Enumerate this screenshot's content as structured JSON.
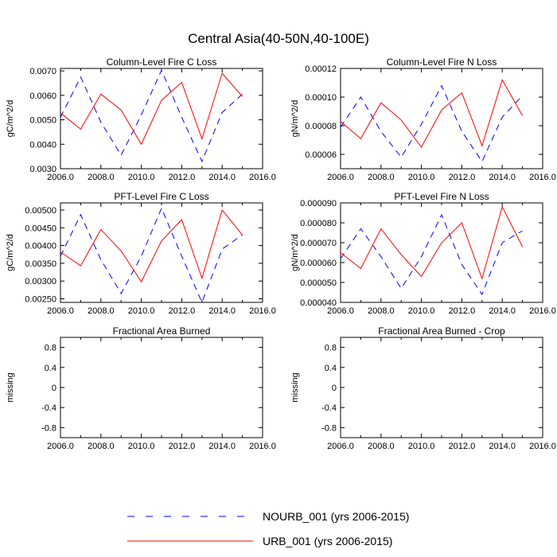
{
  "figure": {
    "title": "Central Asia(40-50N,40-100E)"
  },
  "legend": {
    "entries": [
      {
        "label": "NOURB_001 (yrs 2006-2015)",
        "color": "#0000ff",
        "dash": "dashed"
      },
      {
        "label": "URB_001 (yrs 2006-2015)",
        "color": "#ff0000",
        "dash": "solid"
      }
    ]
  },
  "chart_data": [
    {
      "type": "line",
      "title": "Column-Level Fire C Loss",
      "ylabel": "gC/m^2/d",
      "xlim": [
        2006,
        2016
      ],
      "ylim": [
        0.003,
        0.0071
      ],
      "xticks": [
        2006,
        2008,
        2010,
        2012,
        2014,
        2016
      ],
      "xtick_labels": [
        "2006.0",
        "2008.0",
        "2010.0",
        "2012.0",
        "2014.0",
        "2016.0"
      ],
      "yticks": [
        0.003,
        0.004,
        0.005,
        0.006,
        0.007
      ],
      "ytick_labels": [
        "0.0030",
        "0.0040",
        "0.0050",
        "0.0060",
        "0.0070"
      ],
      "x": [
        2006,
        2007,
        2008,
        2009,
        2010,
        2011,
        2012,
        2013,
        2014,
        2015
      ],
      "series": [
        {
          "name": "NOURB_001 (yrs 2006-2015)",
          "values": [
            0.0051,
            0.00675,
            0.0049,
            0.00355,
            0.0052,
            0.00703,
            0.0051,
            0.0033,
            0.0053,
            0.00605
          ]
        },
        {
          "name": "URB_001 (yrs 2006-2015)",
          "values": [
            0.00528,
            0.00462,
            0.00605,
            0.0054,
            0.004,
            0.0058,
            0.00653,
            0.00422,
            0.0069,
            0.00595
          ]
        }
      ]
    },
    {
      "type": "line",
      "title": "Column-Level Fire N Loss",
      "ylabel": "gN/m^2/d",
      "xlim": [
        2006,
        2016
      ],
      "ylim": [
        5e-05,
        0.00012
      ],
      "xticks": [
        2006,
        2008,
        2010,
        2012,
        2014,
        2016
      ],
      "xtick_labels": [
        "2006.0",
        "2008.0",
        "2010.0",
        "2012.0",
        "2014.0",
        "2016.0"
      ],
      "yticks": [
        6e-05,
        8e-05,
        0.0001,
        0.00012
      ],
      "ytick_labels": [
        "0.00006",
        "0.00008",
        "0.00010",
        "0.00012"
      ],
      "x": [
        2006,
        2007,
        2008,
        2009,
        2010,
        2011,
        2012,
        2013,
        2014,
        2015
      ],
      "series": [
        {
          "name": "NOURB_001 (yrs 2006-2015)",
          "values": [
            7.9e-05,
            0.0001,
            7.6e-05,
            5.8e-05,
            8.1e-05,
            0.000108,
            7.6e-05,
            5.5e-05,
            8.6e-05,
            0.000101
          ]
        },
        {
          "name": "URB_001 (yrs 2006-2015)",
          "values": [
            8.3e-05,
            7.1e-05,
            9.6e-05,
            8.4e-05,
            6.5e-05,
            9.1e-05,
            0.000103,
            6.6e-05,
            0.000112,
            8.7e-05
          ]
        }
      ]
    },
    {
      "type": "line",
      "title": "PFT-Level Fire C Loss",
      "ylabel": "gC/m^2/d",
      "xlim": [
        2006,
        2016
      ],
      "ylim": [
        0.0024,
        0.0052
      ],
      "xticks": [
        2006,
        2008,
        2010,
        2012,
        2014,
        2016
      ],
      "xtick_labels": [
        "2006.0",
        "2008.0",
        "2010.0",
        "2012.0",
        "2014.0",
        "2016.0"
      ],
      "yticks": [
        0.0025,
        0.003,
        0.0035,
        0.004,
        0.0045,
        0.005
      ],
      "ytick_labels": [
        "0.00250",
        "0.00300",
        "0.00350",
        "0.00400",
        "0.00450",
        "0.00500"
      ],
      "x": [
        2006,
        2007,
        2008,
        2009,
        2010,
        2011,
        2012,
        2013,
        2014,
        2015
      ],
      "series": [
        {
          "name": "NOURB_001 (yrs 2006-2015)",
          "values": [
            0.0037,
            0.00487,
            0.0036,
            0.00265,
            0.0037,
            0.00505,
            0.0037,
            0.0024,
            0.0039,
            0.0043
          ]
        },
        {
          "name": "URB_001 (yrs 2006-2015)",
          "values": [
            0.00382,
            0.00343,
            0.00445,
            0.00385,
            0.00298,
            0.00413,
            0.00473,
            0.00308,
            0.005,
            0.0043
          ]
        }
      ]
    },
    {
      "type": "line",
      "title": "PFT-Level Fire N Loss",
      "ylabel": "gN/m^2/d",
      "xlim": [
        2006,
        2016
      ],
      "ylim": [
        4e-05,
        9e-05
      ],
      "xticks": [
        2006,
        2008,
        2010,
        2012,
        2014,
        2016
      ],
      "xtick_labels": [
        "2006.0",
        "2008.0",
        "2010.0",
        "2012.0",
        "2014.0",
        "2016.0"
      ],
      "yticks": [
        4e-05,
        5e-05,
        6e-05,
        7e-05,
        8e-05,
        9e-05
      ],
      "ytick_labels": [
        "0.000040",
        "0.000050",
        "0.000060",
        "0.000070",
        "0.000080",
        "0.000090"
      ],
      "x": [
        2006,
        2007,
        2008,
        2009,
        2010,
        2011,
        2012,
        2013,
        2014,
        2015
      ],
      "series": [
        {
          "name": "NOURB_001 (yrs 2006-2015)",
          "values": [
            6.2e-05,
            7.7e-05,
            6.3e-05,
            4.7e-05,
            6.3e-05,
            8.4e-05,
            5.9e-05,
            4.4e-05,
            7e-05,
            7.6e-05
          ]
        },
        {
          "name": "URB_001 (yrs 2006-2015)",
          "values": [
            6.5e-05,
            5.7e-05,
            7.7e-05,
            6.4e-05,
            5.3e-05,
            7e-05,
            8e-05,
            5.2e-05,
            8.8e-05,
            6.8e-05
          ]
        }
      ]
    },
    {
      "type": "line",
      "title": "Fractional Area Burned",
      "ylabel": "missing",
      "xlim": [
        2006,
        2016
      ],
      "ylim": [
        -1,
        1
      ],
      "xticks": [
        2006,
        2008,
        2010,
        2012,
        2014,
        2016
      ],
      "xtick_labels": [
        "2006.0",
        "2008.0",
        "2010.0",
        "2012.0",
        "2014.0",
        "2016.0"
      ],
      "yticks": [
        -0.8,
        -0.4,
        0,
        0.4,
        0.8
      ],
      "ytick_labels": [
        "-0.8",
        "-0.4",
        "0",
        "0.4",
        "0.8"
      ],
      "x": [],
      "series": []
    },
    {
      "type": "line",
      "title": "Fractional Area Burned - Crop",
      "ylabel": "missing",
      "xlim": [
        2006,
        2016
      ],
      "ylim": [
        -1,
        1
      ],
      "xticks": [
        2006,
        2008,
        2010,
        2012,
        2014,
        2016
      ],
      "xtick_labels": [
        "2006.0",
        "2008.0",
        "2010.0",
        "2012.0",
        "2014.0",
        "2016.0"
      ],
      "yticks": [
        -0.8,
        -0.4,
        0,
        0.4,
        0.8
      ],
      "ytick_labels": [
        "-0.8",
        "-0.4",
        "0",
        "0.4",
        "0.8"
      ],
      "x": [],
      "series": []
    }
  ]
}
